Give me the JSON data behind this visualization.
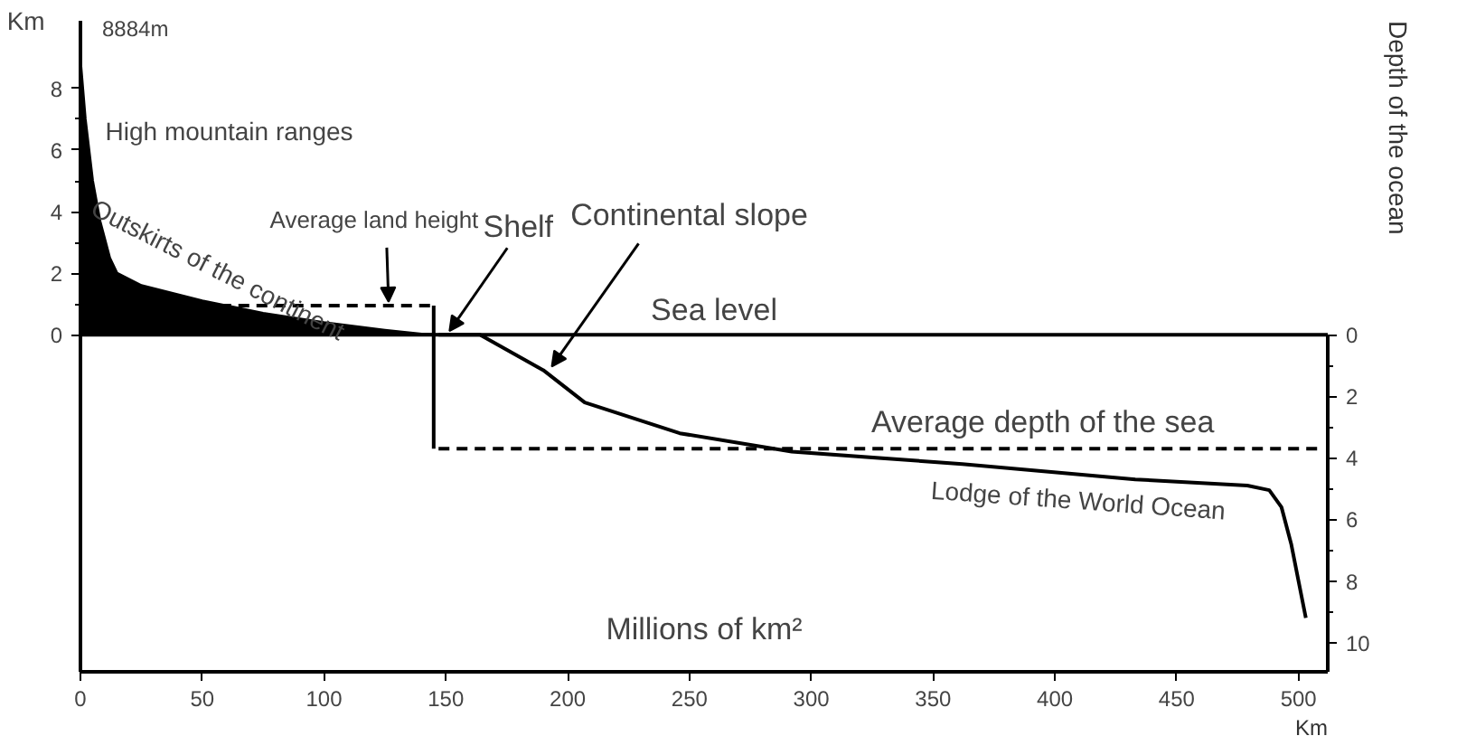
{
  "chart_data": {
    "type": "area",
    "xlabel": "Millions of km²",
    "ylabel": "Km",
    "y2label": "Depth of the ocean",
    "xlim": [
      0,
      512
    ],
    "xticks": [
      0,
      50,
      100,
      150,
      200,
      250,
      300,
      350,
      400,
      450,
      500
    ],
    "ylim": [
      -10.95,
      10.2
    ],
    "yticks": [
      0,
      2,
      4,
      6,
      8
    ],
    "y2lim": [
      10.95,
      0
    ],
    "y2ticks": [
      0,
      2,
      4,
      6,
      8,
      10
    ],
    "grid": false,
    "marker": "none",
    "series": [
      {
        "color": "#000000",
        "x": [
          0,
          2,
          5,
          8,
          12,
          15,
          25,
          50,
          75,
          100,
          125,
          140,
          147
        ],
        "values": [
          8.9,
          7,
          5,
          3.7,
          2.5,
          2.0,
          1.6,
          1.1,
          0.7,
          0.4,
          0.15,
          0.02,
          0
        ]
      },
      {
        "type": "line",
        "color": "#000000",
        "line_style": "dashed",
        "x": [
          50,
          145
        ],
        "values": [
          0.95,
          0.95
        ]
      },
      {
        "type": "line",
        "color": "#000000",
        "line_style": "solid",
        "x": [
          145,
          145
        ],
        "values": [
          0.95,
          -3.7
        ]
      },
      {
        "type": "line",
        "color": "#000000",
        "line_style": "dashed",
        "x": [
          147,
          510
        ],
        "values": [
          -3.7,
          -3.7
        ]
      },
      {
        "type": "line",
        "color": "#000000",
        "line_style": "solid",
        "axis": "y2",
        "x": [
          147,
          164,
          190,
          207,
          246,
          292,
          362,
          433,
          479,
          488,
          493,
          497,
          500,
          503
        ],
        "values": [
          0,
          0,
          1.15,
          2.2,
          3.2,
          3.8,
          4.2,
          4.7,
          4.9,
          5.05,
          5.6,
          6.8,
          8.0,
          9.2
        ]
      }
    ],
    "ref_lines": [
      {
        "axis": "y",
        "value": 0,
        "label": "Sea level"
      }
    ],
    "annotations": [
      {
        "text": "8884m",
        "x": 0,
        "y": 8.884
      },
      "High mountain ranges",
      {
        "text": "Outskirts of the continent",
        "x": 8,
        "y": 4.6
      },
      {
        "text": "Average land height",
        "x": 125,
        "y": 0.95
      },
      {
        "text": "Shelf",
        "x": 150,
        "y": 0
      },
      {
        "text": "Continental slope",
        "x": 192,
        "y": -1.15
      },
      {
        "text": "Average depth of the sea",
        "x": 395,
        "y": -3.7
      },
      {
        "text": "Lodge of the World Ocean",
        "x": 410,
        "y": -4.55
      },
      "Km"
    ]
  }
}
